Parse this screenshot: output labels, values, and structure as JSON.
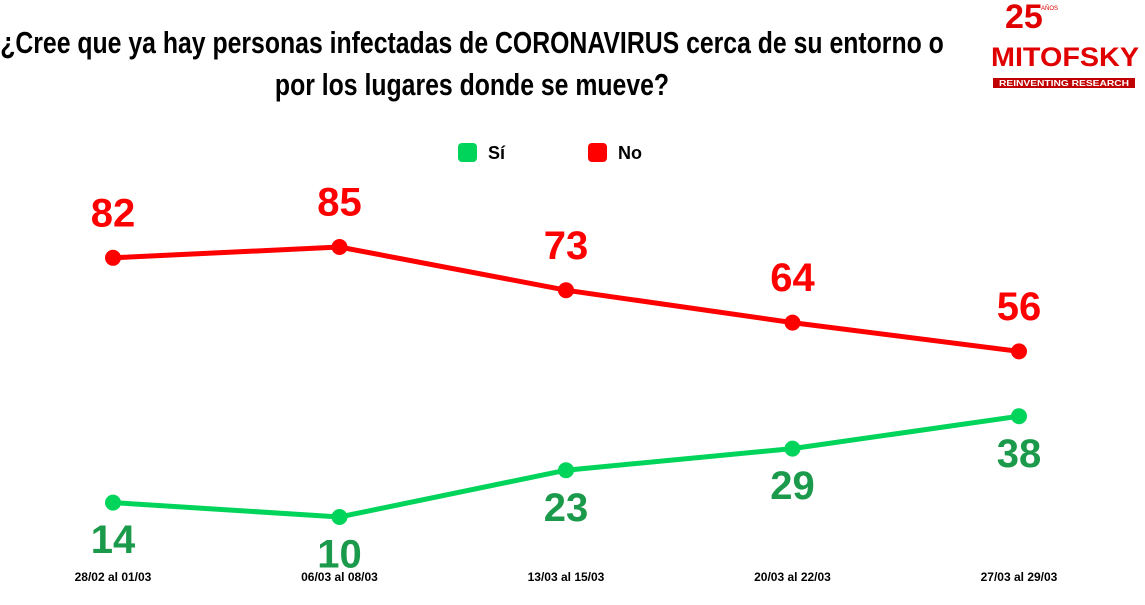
{
  "chart_data": {
    "type": "line",
    "title": "¿Cree que ya hay personas infectadas de CORONAVIRUS cerca de su entorno o por los lugares donde se mueve?",
    "categories": [
      "28/02 al 01/03",
      "06/03 al 08/03",
      "13/03 al 15/03",
      "20/03 al 22/03",
      "27/03 al 29/03"
    ],
    "series": [
      {
        "name": "Sí",
        "color": "#00d45a",
        "values": [
          14,
          10,
          23,
          29,
          38
        ]
      },
      {
        "name": "No",
        "color": "#ff0000",
        "values": [
          82,
          85,
          73,
          64,
          56
        ]
      }
    ]
  },
  "logo": {
    "number": "25",
    "small": "AÑOS",
    "name": "MITOFSKY",
    "tagline": "REINVENTING RESEARCH"
  }
}
